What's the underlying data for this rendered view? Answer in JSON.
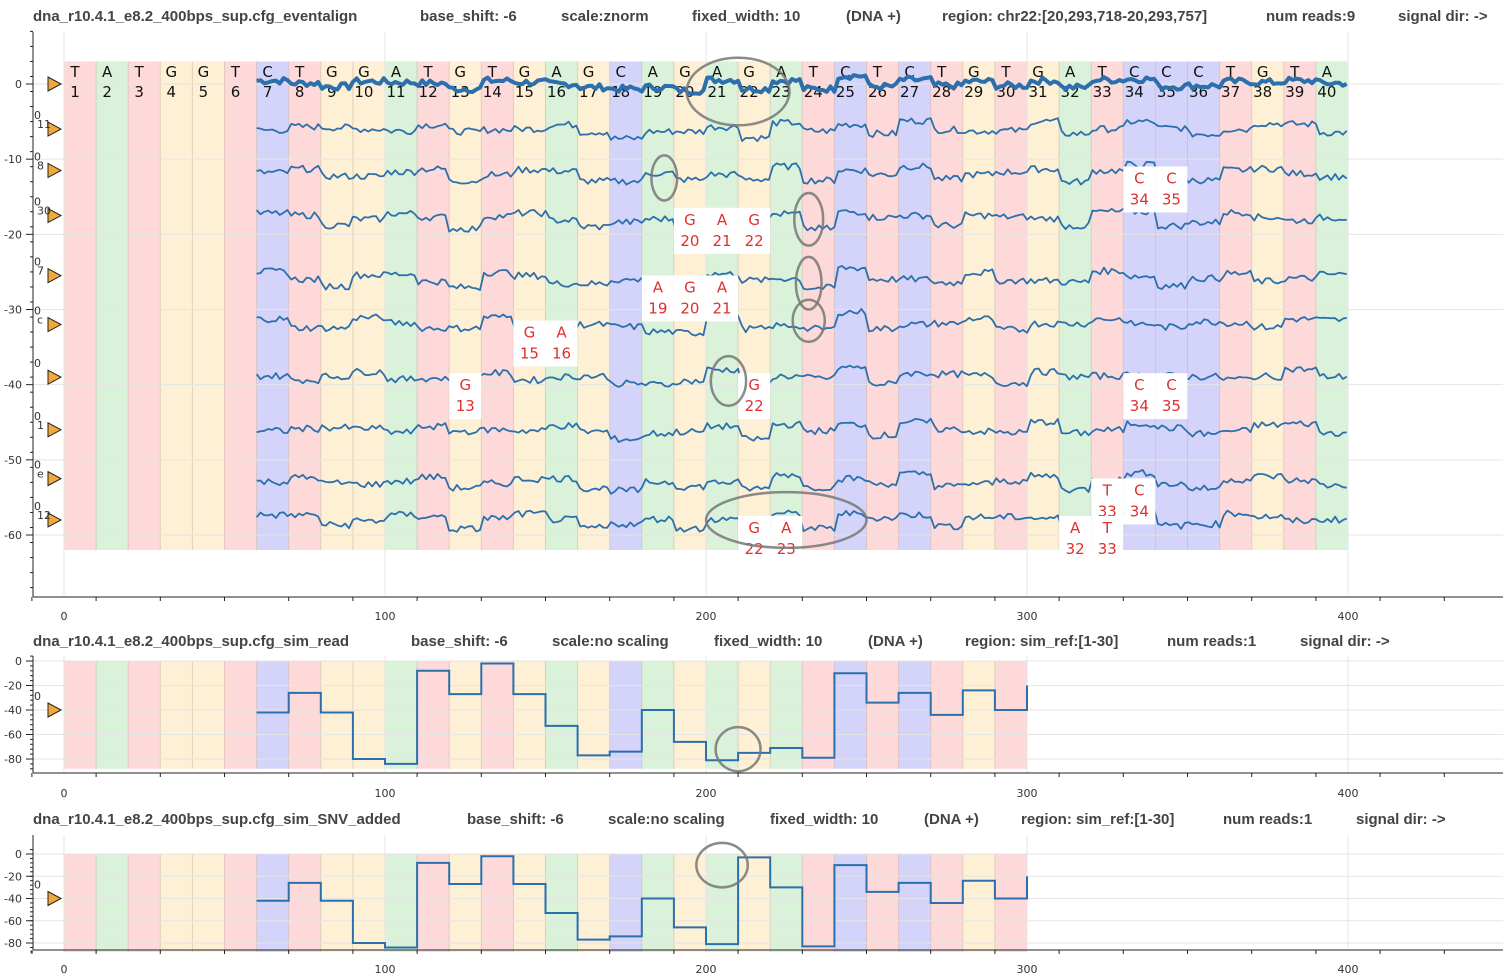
{
  "colors": {
    "A": "#d9f2d9",
    "C": "#d4d4fb",
    "G": "#fdf0d4",
    "T": "#fdd9d9",
    "signal": "#2c6fad",
    "annotation": "#e03030",
    "marker": "#f2a93b",
    "circle": "#777777"
  },
  "chart_data": [
    {
      "type": "line",
      "id": "eventalign",
      "header": {
        "title": "dna_r10.4.1_e8.2_400bps_sup.cfg_eventalign",
        "base_shift": "base_shift: -6",
        "scale": "scale:znorm",
        "fixed_width": "fixed_width: 10",
        "strand": "(DNA +)",
        "region": "region: chr22:[20,293,718-20,293,757]",
        "num_reads": "num reads:9",
        "signal_dir": "signal dir: ->"
      },
      "xlim": [
        -10,
        450
      ],
      "ylim": [
        -68,
        7
      ],
      "x_ticks": [
        0,
        100,
        200,
        300,
        400
      ],
      "y_ticks": [
        0,
        -10,
        -20,
        -30,
        -40,
        -50,
        -60
      ],
      "sequence": "TATGGTCTGGATGTGAGCAGAGATCTCTGTGATCCCTGTA",
      "band_ylim": [
        -62,
        3
      ],
      "read_labels": [
        {
          "y": 0,
          "text": ""
        },
        {
          "y": -6,
          "text": "0\n11"
        },
        {
          "y": -11.5,
          "text": "0\n8"
        },
        {
          "y": -17.5,
          "text": "0\n30"
        },
        {
          "y": -25.5,
          "text": "0\n7"
        },
        {
          "y": -32,
          "text": "0\nc"
        },
        {
          "y": -39,
          "text": "0"
        },
        {
          "y": -46,
          "text": "0\n1"
        },
        {
          "y": -52.5,
          "text": "0\ne"
        },
        {
          "y": -58,
          "text": "0\n12"
        }
      ],
      "annotations": [
        {
          "y": -11.5,
          "bases": [
            {
              "pos": 34,
              "base": "C"
            },
            {
              "pos": 35,
              "base": "C"
            }
          ]
        },
        {
          "y": -17,
          "bases": [
            {
              "pos": 20,
              "base": "G"
            },
            {
              "pos": 21,
              "base": "A"
            },
            {
              "pos": 22,
              "base": "G"
            }
          ]
        },
        {
          "y": -26,
          "bases": [
            {
              "pos": 19,
              "base": "A"
            },
            {
              "pos": 20,
              "base": "G"
            },
            {
              "pos": 21,
              "base": "A"
            }
          ]
        },
        {
          "y": -32,
          "bases": [
            {
              "pos": 15,
              "base": "G"
            },
            {
              "pos": 16,
              "base": "A"
            }
          ]
        },
        {
          "y": -39,
          "bases": [
            {
              "pos": 13,
              "base": "G"
            },
            {
              "pos": 22,
              "base": "G"
            },
            {
              "pos": 34,
              "base": "C"
            },
            {
              "pos": 35,
              "base": "C"
            }
          ]
        },
        {
          "y": -53,
          "bases": [
            {
              "pos": 33,
              "base": "T"
            },
            {
              "pos": 34,
              "base": "C"
            }
          ]
        },
        {
          "y": -58,
          "bases": [
            {
              "pos": 22,
              "base": "G"
            },
            {
              "pos": 23,
              "base": "A"
            },
            {
              "pos": 32,
              "base": "A"
            },
            {
              "pos": 33,
              "base": "T"
            }
          ]
        }
      ],
      "series": [
        {
          "offset": 0,
          "x_start": 60,
          "x_end": 400,
          "values": [
            0.5,
            0.3,
            0.6,
            -0.2,
            -0.5,
            0.2,
            0.4,
            0.1,
            -0.3,
            0.3,
            0.2,
            0.1,
            -0.6,
            0.4,
            0.2,
            0.0,
            -0.4,
            -0.6,
            -0.4,
            -0.8,
            0.5,
            -0.6,
            0.4,
            -0.6,
            1.0,
            -0.3,
            0.5,
            -0.2,
            0.3,
            -0.2,
            0.4,
            -0.4,
            0.5,
            0.6,
            -0.3,
            -0.2,
            0.3,
            0.2,
            0.4,
            0.1
          ]
        },
        {
          "offset": -6,
          "x_start": 60,
          "x_end": 400
        },
        {
          "offset": -12,
          "x_start": 60,
          "x_end": 400
        },
        {
          "offset": -18,
          "x_start": 60,
          "x_end": 400
        },
        {
          "offset": -26,
          "x_start": 60,
          "x_end": 400
        },
        {
          "offset": -32,
          "x_start": 60,
          "x_end": 400
        },
        {
          "offset": -39,
          "x_start": 60,
          "x_end": 400
        },
        {
          "offset": -46,
          "x_start": 60,
          "x_end": 400
        },
        {
          "offset": -53,
          "x_start": 60,
          "x_end": 400
        },
        {
          "offset": -58,
          "x_start": 60,
          "x_end": 400
        }
      ],
      "circles": [
        {
          "x": 210,
          "y": -1,
          "rx": 16,
          "ry": 4.5
        },
        {
          "x": 187,
          "y": -12.5,
          "rx": 4,
          "ry": 3
        },
        {
          "x": 232,
          "y": -18,
          "rx": 4.5,
          "ry": 3.5
        },
        {
          "x": 232,
          "y": -26.5,
          "rx": 4,
          "ry": 3.5
        },
        {
          "x": 232,
          "y": -31.5,
          "rx": 5,
          "ry": 2.8
        },
        {
          "x": 207,
          "y": -39.5,
          "rx": 5.5,
          "ry": 3.3
        },
        {
          "x": 225,
          "y": -58,
          "rx": 25,
          "ry": 3.7
        }
      ]
    },
    {
      "type": "line",
      "id": "sim_read",
      "header": {
        "title": "dna_r10.4.1_e8.2_400bps_sup.cfg_sim_read",
        "base_shift": "base_shift: -6",
        "scale": "scale:no scaling",
        "fixed_width": "fixed_width: 10",
        "strand": "(DNA +)",
        "region": "region: sim_ref:[1-30]",
        "num_reads": "num reads:1",
        "signal_dir": "signal dir: ->"
      },
      "xlim": [
        -10,
        450
      ],
      "ylim": [
        -90,
        4
      ],
      "x_ticks": [
        0,
        100,
        200,
        300,
        400
      ],
      "y_ticks": [
        0,
        -20,
        -40,
        -60,
        -80
      ],
      "sequence": "TATGGTCTGGATGTGAGCAGAGATCTCTGT",
      "band_ylim": [
        -88,
        0
      ],
      "read_labels": [
        {
          "y": -40,
          "text": "0"
        }
      ],
      "steps": [
        {
          "x0": 60,
          "x1": 70,
          "y": -42
        },
        {
          "x0": 70,
          "x1": 80,
          "y": -26
        },
        {
          "x0": 80,
          "x1": 90,
          "y": -42
        },
        {
          "x0": 90,
          "x1": 100,
          "y": -80
        },
        {
          "x0": 100,
          "x1": 110,
          "y": -84
        },
        {
          "x0": 110,
          "x1": 120,
          "y": -8
        },
        {
          "x0": 120,
          "x1": 130,
          "y": -27
        },
        {
          "x0": 130,
          "x1": 140,
          "y": -2
        },
        {
          "x0": 140,
          "x1": 150,
          "y": -27
        },
        {
          "x0": 150,
          "x1": 160,
          "y": -53
        },
        {
          "x0": 160,
          "x1": 170,
          "y": -77
        },
        {
          "x0": 170,
          "x1": 180,
          "y": -74
        },
        {
          "x0": 180,
          "x1": 190,
          "y": -40
        },
        {
          "x0": 190,
          "x1": 200,
          "y": -66
        },
        {
          "x0": 200,
          "x1": 210,
          "y": -81
        },
        {
          "x0": 210,
          "x1": 220,
          "y": -75
        },
        {
          "x0": 220,
          "x1": 230,
          "y": -71
        },
        {
          "x0": 230,
          "x1": 240,
          "y": -79
        },
        {
          "x0": 240,
          "x1": 250,
          "y": -10
        },
        {
          "x0": 250,
          "x1": 260,
          "y": -34
        },
        {
          "x0": 260,
          "x1": 270,
          "y": -26
        },
        {
          "x0": 270,
          "x1": 280,
          "y": -44
        },
        {
          "x0": 280,
          "x1": 290,
          "y": -24
        },
        {
          "x0": 290,
          "x1": 300,
          "y": -40
        },
        {
          "x0": 300,
          "x1": 300,
          "y": -20
        }
      ],
      "circles": [
        {
          "x": 210,
          "y": -72,
          "rx": 7,
          "ry": 18
        }
      ]
    },
    {
      "type": "line",
      "id": "sim_SNV_added",
      "header": {
        "title": "dna_r10.4.1_e8.2_400bps_sup.cfg_sim_SNV_added",
        "base_shift": "base_shift: -6",
        "scale": "scale:no scaling",
        "fixed_width": "fixed_width: 10",
        "strand": "(DNA +)",
        "region": "region: sim_ref:[1-30]",
        "num_reads": "num reads:1",
        "signal_dir": "signal dir: ->"
      },
      "xlim": [
        -10,
        450
      ],
      "ylim": [
        -90,
        4
      ],
      "x_ticks": [
        0,
        100,
        200,
        300,
        400
      ],
      "y_ticks": [
        0,
        -20,
        -40,
        -60,
        -80
      ],
      "sequence": "TATGGTCTGGATGTGAGCAGAGATCTCTGT",
      "band_ylim": [
        -88,
        0
      ],
      "read_labels": [
        {
          "y": -40,
          "text": "0"
        }
      ],
      "steps": [
        {
          "x0": 60,
          "x1": 70,
          "y": -42
        },
        {
          "x0": 70,
          "x1": 80,
          "y": -26
        },
        {
          "x0": 80,
          "x1": 90,
          "y": -42
        },
        {
          "x0": 90,
          "x1": 100,
          "y": -80
        },
        {
          "x0": 100,
          "x1": 110,
          "y": -84
        },
        {
          "x0": 110,
          "x1": 120,
          "y": -8
        },
        {
          "x0": 120,
          "x1": 130,
          "y": -27
        },
        {
          "x0": 130,
          "x1": 140,
          "y": -2
        },
        {
          "x0": 140,
          "x1": 150,
          "y": -27
        },
        {
          "x0": 150,
          "x1": 160,
          "y": -53
        },
        {
          "x0": 160,
          "x1": 170,
          "y": -77
        },
        {
          "x0": 170,
          "x1": 180,
          "y": -74
        },
        {
          "x0": 180,
          "x1": 190,
          "y": -40
        },
        {
          "x0": 190,
          "x1": 200,
          "y": -66
        },
        {
          "x0": 200,
          "x1": 210,
          "y": -81
        },
        {
          "x0": 210,
          "x1": 220,
          "y": -3
        },
        {
          "x0": 220,
          "x1": 230,
          "y": -30
        },
        {
          "x0": 230,
          "x1": 240,
          "y": -83
        },
        {
          "x0": 240,
          "x1": 250,
          "y": -10
        },
        {
          "x0": 250,
          "x1": 260,
          "y": -34
        },
        {
          "x0": 260,
          "x1": 270,
          "y": -26
        },
        {
          "x0": 270,
          "x1": 280,
          "y": -44
        },
        {
          "x0": 280,
          "x1": 290,
          "y": -24
        },
        {
          "x0": 290,
          "x1": 300,
          "y": -40
        },
        {
          "x0": 300,
          "x1": 300,
          "y": -20
        }
      ],
      "circles": [
        {
          "x": 205,
          "y": -10,
          "rx": 8,
          "ry": 20
        }
      ]
    }
  ]
}
